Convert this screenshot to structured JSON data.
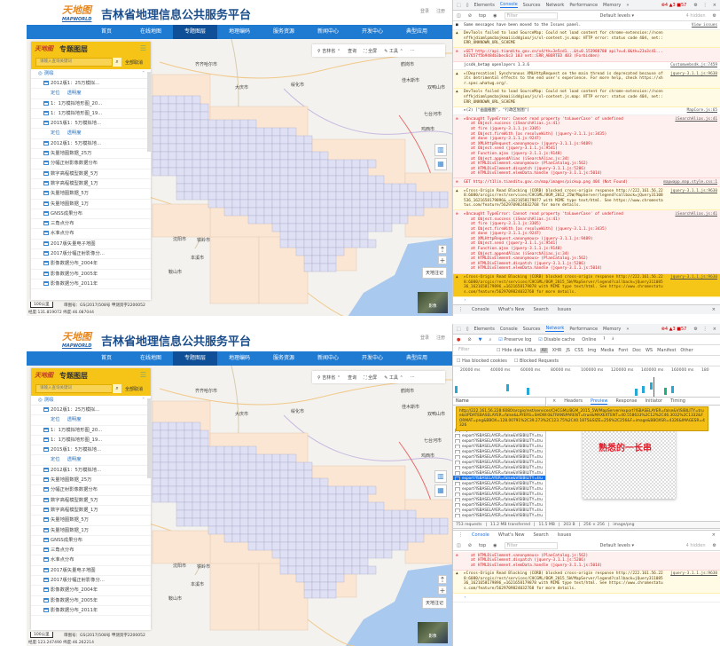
{
  "app": {
    "logo_cn": "天地图",
    "logo_en": "MAPWORLD",
    "title": "吉林省地理信息公共服务平台",
    "header_links": [
      "登录",
      "注册"
    ],
    "nav": [
      "首页",
      "在线地图",
      "专题图层",
      "地理编码",
      "服务资源",
      "新闻中心",
      "开发中心",
      "典型应用"
    ],
    "nav_active": "专题图层",
    "sidebar": {
      "title": "专题图层",
      "search_placeholder": "请输入查询关键词",
      "cancel_all": "全部取消",
      "group": "测绘",
      "locate": "定位",
      "opacity": "透明度",
      "items": [
        "2012版1：25万模拟...",
        "1：1万模拟地形图_20...",
        "1：1万模拟地形图_19...",
        "2015版1：5万模拟地...",
        "2012版1：5万模拟地...",
        "矢量地图数据_25万",
        "分幅正射影像数据分布",
        "数字高程模型数据_5万",
        "数字高程模型数据_1万",
        "矢量地图数据_5万",
        "矢量地图数据_1万",
        "GNSS成果分布",
        "三角点分布",
        "水准点分布",
        "2017版矢量电子地图",
        "2017版分幅正射影像分...",
        "影像数据分布_2004年",
        "影像数据分布_2005年",
        "影像数据分布_2011年"
      ]
    },
    "toolbar": {
      "region": "吉林省",
      "query": "查询",
      "fullscreen": "全屏",
      "tools": "工具",
      "more": "···"
    },
    "map_labels": [
      "齐齐哈尔市",
      "大庆市",
      "绥化市",
      "鹤岗市",
      "佳木斯市",
      "双鸭山市",
      "七台河市",
      "鸡西市",
      "沈阳市",
      "铁岭市",
      "本溪市",
      "鞍山市"
    ],
    "annotation_button": "天地注记",
    "imagery_label": "影像",
    "scale": "100公里",
    "copyright": "审图号：GS(2017)508号 甲测资字2200052",
    "status_top": "经度:131.819072  纬度:46.087044",
    "status_bottom": "经度:123.247490  纬度:46.262214"
  },
  "devtools_top": {
    "tabs": [
      "Elements",
      "Console",
      "Sources",
      "Network",
      "Performance",
      "Memory",
      "»"
    ],
    "active_tab": "Console",
    "badges": "⊗4 ▲3 ■57",
    "context": "top",
    "filter_placeholder": "Filter",
    "levels": "Default levels ▾",
    "hidden": "4 hidden",
    "messages": [
      {
        "level": "info",
        "text": "Some messages have been moved to the Issues panel.",
        "source": "View issues"
      },
      {
        "level": "warn",
        "text": "DevTools failed to load SourceMap: Could not load content for chrome-extension://ncennffkjdiamlpmcbajkmaiiiddgioo/js/xl-content.js.map: HTTP error: status code 404, net::ERR_UNKNOWN_URL_SCHEME",
        "source": ""
      },
      {
        "level": "error",
        "text": "▸GET http://api.tianditu.gov.cn/v4/tk=3e5cd1...&t=0.153988788 api?v=4.0&tk=23a3c41...b37657f5b9484b3bec6c3 103 net::ERR_ABORTED 403 (Forbidden)",
        "source": ""
      },
      {
        "level": "log",
        "text": "jcsdk_beta@ openlayers 1.3.6",
        "source": "Customwebsdk.js:7459"
      },
      {
        "level": "warn",
        "text": "▸[Deprecation] Synchronous XMLHttpRequest on the main thread is deprecated because of its detrimental effects to the end user's experience. For more help, check https://xhr.spec.whatwg.org/.",
        "source": "jquery-3.1.1.js:9630"
      },
      {
        "level": "warn",
        "text": "DevTools failed to load SourceMap: Could not load content for chrome-extension://ncennffkjdiamlpmcbajkmaiiiddgioo/js/xl-content.js.map: HTTP error: status code 404, net::ERR_UNKNOWN_URL_SCHEME",
        "source": ""
      },
      {
        "level": "log",
        "text": "▸(2) [\"画面截图\", \"行政区划图\"]",
        "source": "MapCore.js:65"
      },
      {
        "level": "error",
        "text": "▸Uncaught TypeError: Cannot read property 'toLowerCase' of undefined",
        "source": "iSearchAlias.js:41",
        "stack": [
          "at Object.success (iSearchAlias.js:41)",
          "at fire (jquery-3.1.1.js:3305)",
          "at Object.fireWith [as resolveWith] (jquery-3.1.1.js:3435)",
          "at done (jquery-3.1.1.js:9247)",
          "at XMLHttpRequest.<anonymous> (jquery-3.1.1.js:9489)",
          "at Object.send (jquery-3.1.1.js:9541)",
          "at Function.ajax (jquery-3.1.1.js:9148)",
          "at Object.appendAlias (iSearchAlias.js:34)",
          "at HTMLDivElement.<anonymous> (PlanCatalog.js:562)",
          "at HTMLDivElement.dispatch (jquery-3.1.1.js:5206)",
          "at HTMLDivElement.elemData.handle (jquery-3.1.1.js:5014)"
        ]
      },
      {
        "level": "error",
        "text": "GET http://t1lin.tianditu.gov.cn/map/images/pickup.png 404 (Not Found)",
        "source": "mapwapp.map.style.css:1"
      },
      {
        "level": "warn",
        "text": "▸Cross-Origin Read Blocking (CORB) blocked cross-origin response http://222.161.56.228:6080/arcgis/rest/services/CHCGML/BGM_2012_25W/MapServer/legend?callback=jQuery31108536_1621658179896&_=1621658179877 with MIME type text/html. See https://www.chromestatus.com/feature/5629709824032768 for more details.",
        "source": "jquery-3.1.1.js:9630"
      },
      {
        "level": "error",
        "text": "▸Uncaught TypeError: Cannot read property 'toLowerCase' of undefined",
        "source": "iSearchAlias.js:41",
        "stack": [
          "at Object.success (iSearchAlias.js:41)",
          "at fire (jquery-3.1.1.js:3305)",
          "at Object.fireWith [as resolveWith] (jquery-3.1.1.js:3435)",
          "at done (jquery-3.1.1.js:9247)",
          "at XMLHttpRequest.<anonymous> (jquery-3.1.1.js:9489)",
          "at Object.send (jquery-3.1.1.js:9541)",
          "at Function.ajax (jquery-3.1.1.js:9148)",
          "at Object.appendAlias (iSearchAlias.js:34)",
          "at HTMLDivElement.<anonymous> (PlanCatalog.js:562)",
          "at HTMLDivElement.dispatch (jquery-3.1.1.js:5206)",
          "at HTMLDivElement.elemData.handle (jquery-3.1.1.js:5014)"
        ]
      },
      {
        "level": "warn hl",
        "text": "▸Cross-Origin Read Blocking (CORB) blocked cross-origin response http://222.161.56.228:6080/arcgis/rest/services/CHCGML/BGM_2015_5W/MapServer/legend?callback=jQuery31108536_1621658179896_=1621658179878 with MIME type text/html. See https://www.chromestatus.com/feature/5629709824032768 for more details.",
        "source": "jquery-3.1.1.js:9630"
      }
    ],
    "drawer_tabs": [
      "Console",
      "What's New",
      "Search",
      "Issues"
    ]
  },
  "devtools_bottom": {
    "tabs": [
      "Elements",
      "Console",
      "Sources",
      "Network",
      "Performance",
      "Memory",
      "»"
    ],
    "active_tab": "Network",
    "badges": "⊗4 ▲3 ■57",
    "preserve_log": "Preserve log",
    "disable_cache": "Disable cache",
    "throttle": "Online",
    "filter_placeholder": "Filter",
    "hide_data_urls": "Hide data URLs",
    "type_filters": [
      "All",
      "XHR",
      "JS",
      "CSS",
      "Img",
      "Media",
      "Font",
      "Doc",
      "WS",
      "Manifest",
      "Other"
    ],
    "has_blocked_cookies": "Has blocked cookies",
    "blocked_requests": "Blocked Requests",
    "timeline_ticks": [
      "20000 ms",
      "40000 ms",
      "60000 ms",
      "80000 ms",
      "100000 ms",
      "120000 ms",
      "140000 ms",
      "160000 ms",
      "180"
    ],
    "name_header": "Name",
    "request_name": "export?ISBASELAYER=false&VISIBILITY=tru",
    "request_count": 17,
    "selected_index": 9,
    "detail_tabs": [
      "×",
      "Headers",
      "Preview",
      "Response",
      "Initiator",
      "Timing"
    ],
    "detail_active": "Preview",
    "tooltip_url": "http://222.161.56.228:6080/arcgis/rest/services/CHCGML/BGM_2015_5W/MapServer/export?ISBASELAYER=false&VISIBILITY=true&UPDATEBASELAYER=false&LAYERS=SHOW:0&TRANSPARENT=true&MAXEXTENT=40.558633%2C12%2C46.3032%2C1332&FORMAT=png&BBOX=128.00791%2C39.273%2C123.75%2C40.1875&SIZE=256%2C256&F=image&BBOXSR=4326&IMAGESR=4326",
    "annotation": "熟悉的一长串",
    "status": [
      "753 requests",
      "11.2 MB transferred",
      "11.5 MB",
      "203 B",
      "256 × 256",
      "image/png"
    ],
    "drawer_tabs": [
      "Console",
      "What's New",
      "Search",
      "Issues"
    ],
    "context": "top",
    "levels": "Default levels ▾",
    "hidden": "4 hidden",
    "messages": [
      {
        "level": "error",
        "text": "",
        "source": "",
        "stack": [
          "at HTMLDivElement.<anonymous> (PlanCatalog.js:562)",
          "at HTMLDivElement.dispatch (jquery-3.1.1.js:5206)",
          "at HTMLDivElement.elemData.handle (jquery-3.1.1.js:5014)"
        ]
      },
      {
        "level": "warn",
        "text": "▸Cross-Origin Read Blocking (CORB) blocked cross-origin response http://222.161.56.228:6080/arcgis/rest/services/CHCGML/BGM_2015_5W/MapServer/legend?callback=jQuery31108536_1621658179896_=1621658179878 with MIME type text/html. See https://www.chromestatus.com/feature/5629709824032768 for more details.",
        "source": "jquery-3.1.1.js:9630"
      }
    ]
  }
}
